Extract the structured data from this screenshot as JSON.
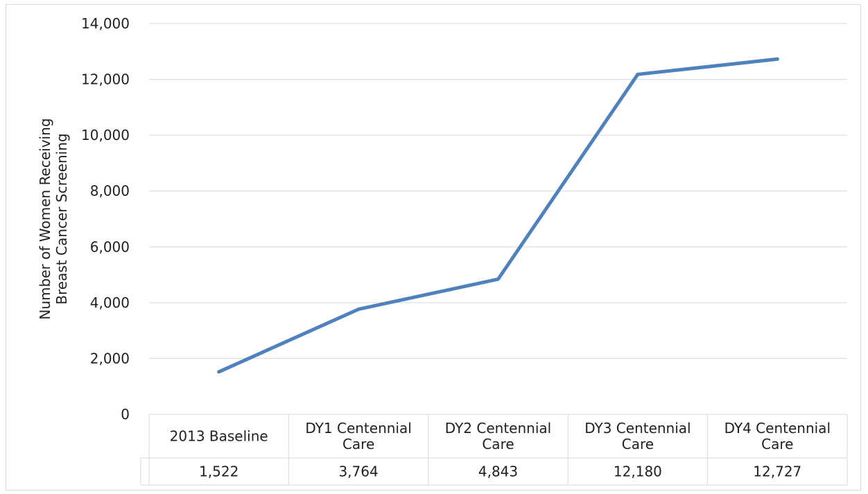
{
  "chart_data": {
    "type": "line",
    "title": "",
    "xlabel": "",
    "ylabel_lines": [
      "Number of Women Receiving",
      "Breast Cancer Screening"
    ],
    "categories": [
      [
        "2013 Baseline"
      ],
      [
        "DY1 Centennial",
        "Care"
      ],
      [
        "DY2 Centennial",
        "Care"
      ],
      [
        "DY3 Centennial",
        "Care"
      ],
      [
        "DY4 Centennial",
        "Care"
      ]
    ],
    "series": [
      {
        "values": [
          1522,
          3764,
          4843,
          12180,
          12727
        ],
        "color": "#4f81bd"
      }
    ],
    "data_table": [
      "1,522",
      "3,764",
      "4,843",
      "12,180",
      "12,727"
    ],
    "ylim": [
      0,
      14000
    ],
    "yticks": [
      0,
      2000,
      4000,
      6000,
      8000,
      10000,
      12000,
      14000
    ],
    "ytick_labels": [
      "0",
      "2,000",
      "4,000",
      "6,000",
      "8,000",
      "10,000",
      "12,000",
      "14,000"
    ],
    "grid": true,
    "legend": "none"
  }
}
